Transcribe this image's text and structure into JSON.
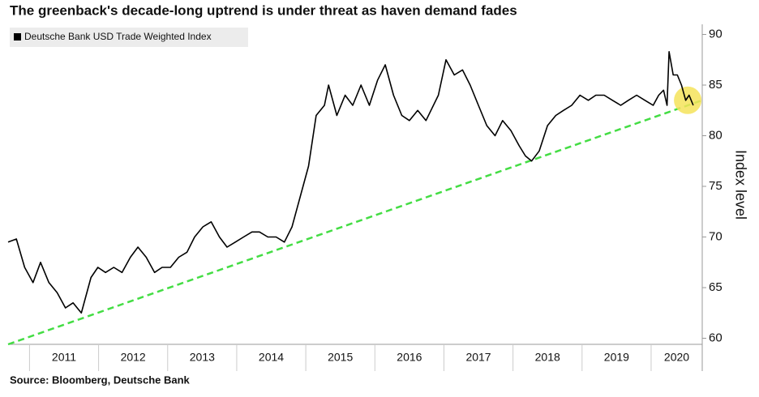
{
  "chart_data": {
    "type": "line",
    "title": "The greenback's decade-long uptrend is under threat as haven demand fades",
    "source": "Source: Bloomberg, Deutsche Bank",
    "y_label": "Index level",
    "series": [
      {
        "name": "Deutsche Bank USD Trade Weighted Index",
        "color": "#000000",
        "x": [
          2010.69,
          2010.81,
          2010.93,
          2011.05,
          2011.16,
          2011.28,
          2011.4,
          2011.52,
          2011.63,
          2011.75,
          2011.81,
          2011.89,
          2011.99,
          2012.1,
          2012.22,
          2012.34,
          2012.46,
          2012.57,
          2012.69,
          2012.81,
          2012.92,
          2013.04,
          2013.16,
          2013.28,
          2013.39,
          2013.51,
          2013.63,
          2013.75,
          2013.86,
          2013.98,
          2014.1,
          2014.22,
          2014.33,
          2014.45,
          2014.57,
          2014.69,
          2014.8,
          2014.92,
          2015.04,
          2015.15,
          2015.27,
          2015.33,
          2015.45,
          2015.57,
          2015.68,
          2015.8,
          2015.92,
          2016.04,
          2016.15,
          2016.27,
          2016.39,
          2016.5,
          2016.62,
          2016.74,
          2016.92,
          2017.03,
          2017.15,
          2017.27,
          2017.38,
          2017.5,
          2017.62,
          2017.74,
          2017.85,
          2017.97,
          2018.09,
          2018.18,
          2018.27,
          2018.38,
          2018.5,
          2018.62,
          2018.73,
          2018.85,
          2018.97,
          2019.09,
          2019.2,
          2019.32,
          2019.44,
          2019.56,
          2019.67,
          2019.79,
          2019.91,
          2020.03,
          2020.11,
          2020.18,
          2020.23,
          2020.26,
          2020.32,
          2020.38,
          2020.44,
          2020.5,
          2020.55,
          2020.61
        ],
        "values": [
          69.5,
          69.8,
          67,
          65.5,
          67.5,
          65.5,
          64.5,
          63,
          63.5,
          62.5,
          64,
          66,
          67,
          66.5,
          67,
          66.5,
          68,
          69,
          68,
          66.5,
          67,
          67,
          68,
          68.5,
          70,
          71,
          71.5,
          70,
          69,
          69.5,
          70,
          70.5,
          70.5,
          70,
          70,
          69.5,
          71,
          74,
          77,
          82,
          83,
          85,
          82,
          84,
          83,
          85,
          83,
          85.5,
          87,
          84,
          82,
          81.5,
          82.5,
          81.5,
          84,
          87.5,
          86,
          86.5,
          85,
          83,
          81,
          80,
          81.5,
          80.5,
          79,
          78,
          77.5,
          78.5,
          81,
          82,
          82.5,
          83,
          84,
          83.5,
          84,
          84,
          83.5,
          83,
          83.5,
          84,
          83.5,
          83,
          84,
          84.5,
          83,
          88.3,
          86,
          86,
          85,
          83.5,
          84,
          83
        ]
      }
    ],
    "trendline": {
      "color": "#44dd44",
      "x": [
        2010.69,
        2020.74
      ],
      "values": [
        59.4,
        83.5
      ]
    },
    "highlight": {
      "color": "#f5e35a",
      "x": 2020.53,
      "y": 83.5
    },
    "xlim": [
      2010.69,
      2020.74
    ],
    "xticks": [
      2011,
      2012,
      2013,
      2014,
      2015,
      2016,
      2017,
      2018,
      2019,
      2020
    ],
    "ylim": [
      59.4,
      91
    ],
    "yticks": [
      60,
      65,
      70,
      75,
      80,
      85,
      90
    ]
  }
}
